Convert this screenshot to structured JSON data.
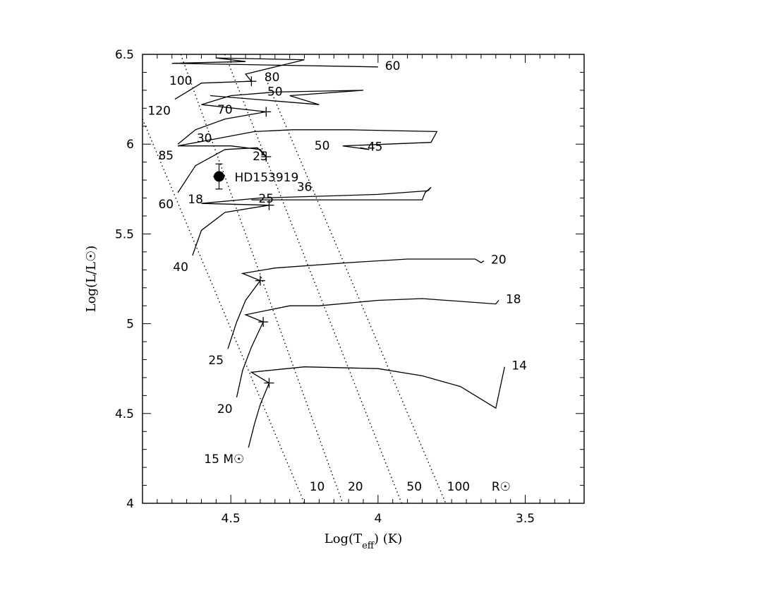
{
  "chart_data": {
    "type": "line",
    "title": "",
    "xlabel": "Log(T_eff) (K)",
    "ylabel": "Log(L/L☉)",
    "xlim": [
      4.8,
      3.3
    ],
    "ylim": [
      4.0,
      6.5
    ],
    "x_reversed": true,
    "x_ticks": [
      "4.5",
      "4",
      "3.5"
    ],
    "y_ticks": [
      "4",
      "4.5",
      "5",
      "5.5",
      "6",
      "6.5"
    ],
    "grid": false,
    "legend": "none",
    "star": {
      "label": "HD153919",
      "x": 4.54,
      "y": 5.82,
      "y_err": [
        0.07,
        0.07
      ],
      "x_err": [
        0.02,
        0.02
      ]
    },
    "radius_lines": [
      {
        "label": "10",
        "points": [
          [
            4.8,
            6.14
          ],
          [
            4.25,
            4.0
          ]
        ]
      },
      {
        "label": "20",
        "points": [
          [
            4.67,
            6.5
          ],
          [
            4.12,
            4.0
          ]
        ]
      },
      {
        "label": "50",
        "points": [
          [
            4.52,
            6.5
          ],
          [
            3.92,
            4.0
          ]
        ]
      },
      {
        "label": "100",
        "points": [
          [
            4.38,
            6.36
          ],
          [
            3.77,
            4.0
          ]
        ]
      }
    ],
    "radius_unit_label": "R☉",
    "tracks": [
      {
        "mass": "15",
        "mass_label_suffix": "M☉",
        "start_label": "15",
        "points": [
          [
            4.44,
            4.31
          ],
          [
            4.42,
            4.44
          ],
          [
            4.4,
            4.55
          ],
          [
            4.37,
            4.67
          ],
          [
            4.43,
            4.73
          ],
          [
            4.25,
            4.76
          ],
          [
            4.0,
            4.75
          ],
          [
            3.85,
            4.71
          ],
          [
            3.72,
            4.65
          ],
          [
            3.6,
            4.53
          ],
          [
            3.57,
            4.76
          ]
        ],
        "end_label": "14"
      },
      {
        "mass": "20",
        "start_label": "20",
        "points": [
          [
            4.48,
            4.59
          ],
          [
            4.46,
            4.74
          ],
          [
            4.43,
            4.87
          ],
          [
            4.39,
            5.01
          ],
          [
            4.45,
            5.05
          ],
          [
            4.3,
            5.1
          ],
          [
            4.2,
            5.1
          ],
          [
            4.0,
            5.13
          ],
          [
            3.85,
            5.14
          ],
          [
            3.6,
            5.11
          ],
          [
            3.59,
            5.13
          ]
        ],
        "end_label": "18"
      },
      {
        "mass": "25",
        "start_label": "25",
        "points": [
          [
            4.51,
            4.86
          ],
          [
            4.48,
            5.01
          ],
          [
            4.45,
            5.13
          ],
          [
            4.4,
            5.24
          ],
          [
            4.46,
            5.28
          ],
          [
            4.35,
            5.31
          ],
          [
            4.1,
            5.34
          ],
          [
            3.9,
            5.36
          ],
          [
            3.67,
            5.36
          ],
          [
            3.65,
            5.34
          ],
          [
            3.64,
            5.35
          ]
        ],
        "end_label": "20"
      },
      {
        "mass": "40",
        "start_label": "40",
        "points": [
          [
            4.63,
            5.38
          ],
          [
            4.6,
            5.52
          ],
          [
            4.52,
            5.62
          ],
          [
            4.37,
            5.66
          ],
          [
            4.6,
            5.67
          ],
          [
            4.4,
            5.7
          ],
          [
            4.2,
            5.71
          ],
          [
            4.0,
            5.72
          ],
          [
            3.83,
            5.74
          ],
          [
            3.82,
            5.76
          ],
          [
            3.84,
            5.73
          ],
          [
            3.85,
            5.69
          ],
          [
            4.43,
            5.69
          ]
        ],
        "labels": [
          [
            "36",
            4.25,
            5.74
          ],
          [
            "18",
            4.62,
            5.67
          ]
        ],
        "end_label": "25"
      },
      {
        "mass": "60",
        "start_label": "60",
        "points": [
          [
            4.68,
            5.73
          ],
          [
            4.62,
            5.88
          ],
          [
            4.52,
            5.97
          ],
          [
            4.41,
            5.98
          ],
          [
            4.38,
            5.93
          ],
          [
            4.4,
            5.97
          ],
          [
            4.5,
            5.99
          ],
          [
            4.68,
            5.99
          ],
          [
            4.55,
            6.03
          ],
          [
            4.42,
            6.07
          ],
          [
            4.29,
            6.08
          ],
          [
            4.1,
            6.08
          ],
          [
            3.8,
            6.07
          ],
          [
            3.82,
            6.01
          ],
          [
            4.12,
            5.99
          ],
          [
            4.03,
            5.97
          ],
          [
            4.06,
            5.98
          ]
        ],
        "labels": [
          [
            "30",
            4.59,
            6.01
          ],
          [
            "25",
            4.4,
            5.91
          ],
          [
            "50",
            4.19,
            5.97
          ]
        ],
        "end_label": "45"
      },
      {
        "mass": "85",
        "start_label": "85",
        "points": [
          [
            4.68,
            6.0
          ],
          [
            4.62,
            6.08
          ],
          [
            4.52,
            6.14
          ],
          [
            4.38,
            6.18
          ],
          [
            4.6,
            6.22
          ],
          [
            4.5,
            6.27
          ],
          [
            4.35,
            6.29
          ],
          [
            4.05,
            6.3
          ],
          [
            4.3,
            6.27
          ],
          [
            4.2,
            6.22
          ],
          [
            4.57,
            6.27
          ]
        ],
        "labels": [
          [
            "70",
            4.52,
            6.17
          ],
          [
            "50",
            4.35,
            6.27
          ]
        ]
      },
      {
        "mass": "120",
        "start_label": "120",
        "points": [
          [
            4.69,
            6.25
          ],
          [
            4.64,
            6.3
          ],
          [
            4.6,
            6.34
          ],
          [
            4.43,
            6.35
          ],
          [
            4.45,
            6.39
          ],
          [
            4.3,
            6.45
          ],
          [
            4.25,
            6.47
          ],
          [
            4.55,
            6.48
          ],
          [
            4.45,
            6.46
          ],
          [
            4.7,
            6.45
          ],
          [
            4.0,
            6.43
          ]
        ],
        "labels": [
          [
            "100",
            4.67,
            6.33
          ],
          [
            "80",
            4.36,
            6.35
          ]
        ],
        "end_label": "60"
      }
    ]
  }
}
